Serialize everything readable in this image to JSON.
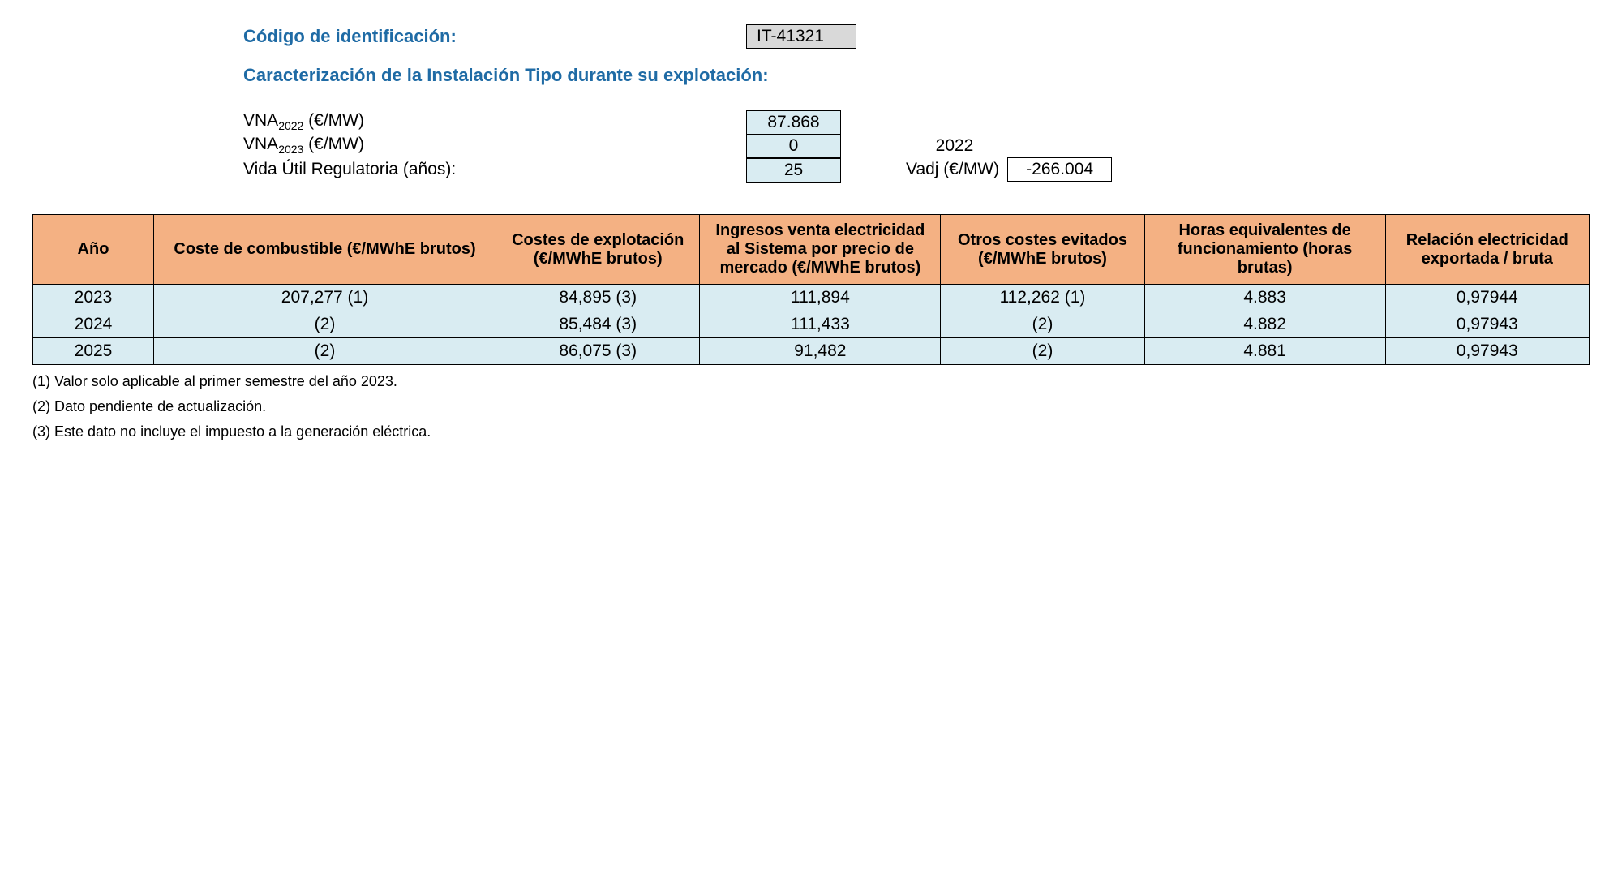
{
  "header": {
    "codigo_label": "Código de identificación:",
    "codigo_value": "IT-41321",
    "caracterizacion": "Caracterización de la Instalación Tipo durante su explotación:",
    "vna2022_label_html": "VNA<sub>2022</sub> (€/MW)",
    "vna2022_value": "87.868",
    "vna2023_label_html": "VNA<sub>2023</sub> (€/MW)",
    "vna2023_value": "0",
    "year_ref": "2022",
    "vida_label": "Vida Útil Regulatoria (años):",
    "vida_value": "25",
    "vadj_label": "Vadj (€/MW)",
    "vadj_value": "-266.004"
  },
  "table": {
    "columns": [
      "Año",
      "Coste de combustible (€/MWhE brutos)",
      "Costes de explotación (€/MWhE brutos)",
      "Ingresos venta electricidad al Sistema por precio de mercado (€/MWhE brutos)",
      "Otros costes evitados (€/MWhE brutos)",
      "Horas equivalentes de funcionamiento (horas brutas)",
      "Relación electricidad exportada / bruta"
    ],
    "rows": [
      [
        "2023",
        "207,277 (1)",
        "84,895 (3)",
        "111,894",
        "112,262 (1)",
        "4.883",
        "0,97944"
      ],
      [
        "2024",
        "(2)",
        "85,484 (3)",
        "111,433",
        "(2)",
        "4.882",
        "0,97943"
      ],
      [
        "2025",
        "(2)",
        "86,075 (3)",
        "91,482",
        "(2)",
        "4.881",
        "0,97943"
      ]
    ]
  },
  "footnotes": [
    "(1) Valor solo aplicable al primer semestre del año 2023.",
    "(2) Dato pendiente de actualización.",
    "(3) Este dato no incluye el impuesto a la generación eléctrica."
  ]
}
